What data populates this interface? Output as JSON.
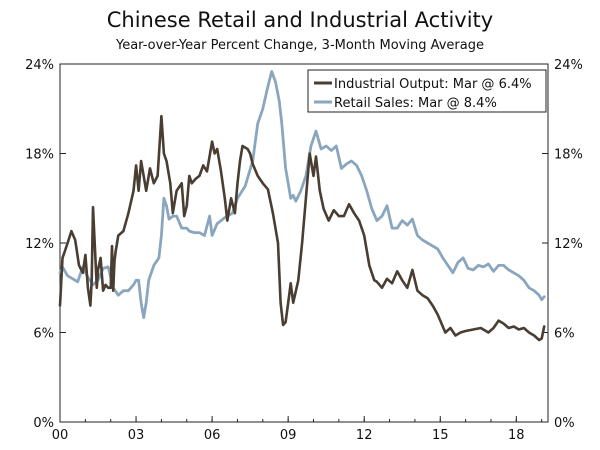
{
  "chart_data": {
    "type": "line",
    "title": "Chinese Retail and Industrial Activity",
    "subtitle": "Year-over-Year Percent Change, 3-Month Moving Average",
    "xlabel": "",
    "ylabel": "",
    "xlim": [
      2000.0,
      2019.25
    ],
    "ylim": [
      0,
      24
    ],
    "grid": false,
    "legend_position": "top-right",
    "x_ticks": [
      {
        "value": 2000,
        "label": "00"
      },
      {
        "value": 2003,
        "label": "03"
      },
      {
        "value": 2006,
        "label": "06"
      },
      {
        "value": 2009,
        "label": "09"
      },
      {
        "value": 2012,
        "label": "12"
      },
      {
        "value": 2015,
        "label": "15"
      },
      {
        "value": 2018,
        "label": "18"
      }
    ],
    "y_ticks": [
      {
        "value": 0,
        "label": "0%"
      },
      {
        "value": 6,
        "label": "6%"
      },
      {
        "value": 12,
        "label": "12%"
      },
      {
        "value": 18,
        "label": "18%"
      },
      {
        "value": 24,
        "label": "24%"
      }
    ],
    "series": [
      {
        "name": "Industrial Output: Mar @ 6.4%",
        "color": "#4a3d31",
        "x": [
          2000.0,
          2000.1,
          2000.2,
          2000.3,
          2000.45,
          2000.6,
          2000.75,
          2000.9,
          2001.0,
          2001.1,
          2001.2,
          2001.25,
          2001.3,
          2001.45,
          2001.5,
          2001.6,
          2001.7,
          2001.8,
          2001.9,
          2002.0,
          2002.05,
          2002.1,
          2002.15,
          2002.2,
          2002.3,
          2002.5,
          2002.7,
          2002.9,
          2003.0,
          2003.1,
          2003.2,
          2003.4,
          2003.55,
          2003.7,
          2003.85,
          2004.0,
          2004.1,
          2004.2,
          2004.35,
          2004.45,
          2004.6,
          2004.8,
          2004.9,
          2005.0,
          2005.1,
          2005.2,
          2005.35,
          2005.5,
          2005.65,
          2005.8,
          2006.0,
          2006.1,
          2006.2,
          2006.35,
          2006.5,
          2006.6,
          2006.75,
          2006.9,
          2007.0,
          2007.1,
          2007.2,
          2007.4,
          2007.5,
          2007.6,
          2007.8,
          2008.0,
          2008.2,
          2008.4,
          2008.6,
          2008.7,
          2008.8,
          2008.9,
          2009.0,
          2009.1,
          2009.2,
          2009.4,
          2009.55,
          2009.7,
          2009.85,
          2010.0,
          2010.1,
          2010.25,
          2010.4,
          2010.6,
          2010.8,
          2011.0,
          2011.2,
          2011.4,
          2011.6,
          2011.8,
          2012.0,
          2012.2,
          2012.4,
          2012.5,
          2012.7,
          2012.9,
          2013.1,
          2013.3,
          2013.5,
          2013.7,
          2013.9,
          2014.1,
          2014.3,
          2014.5,
          2014.7,
          2014.9,
          2015.0,
          2015.2,
          2015.4,
          2015.6,
          2015.8,
          2016.0,
          2016.3,
          2016.6,
          2016.9,
          2017.1,
          2017.3,
          2017.5,
          2017.7,
          2017.9,
          2018.1,
          2018.3,
          2018.5,
          2018.7,
          2018.9,
          2019.0,
          2019.1
        ],
        "values": [
          7.8,
          11.0,
          11.5,
          12.0,
          12.8,
          12.2,
          10.5,
          10.0,
          11.2,
          9.0,
          7.8,
          9.5,
          14.4,
          9.0,
          10.2,
          11.0,
          8.8,
          9.2,
          9.0,
          9.0,
          11.8,
          8.8,
          10.8,
          11.5,
          12.5,
          12.8,
          14.0,
          15.5,
          17.2,
          15.5,
          17.5,
          15.5,
          17.0,
          16.0,
          16.5,
          20.5,
          18.0,
          17.5,
          16.0,
          14.0,
          15.5,
          16.0,
          13.8,
          14.5,
          16.5,
          16.0,
          16.3,
          16.5,
          17.2,
          16.8,
          18.8,
          18.0,
          18.3,
          16.8,
          15.0,
          13.5,
          15.0,
          14.0,
          16.0,
          17.5,
          18.5,
          18.3,
          18.0,
          17.3,
          16.5,
          16.0,
          15.6,
          14.0,
          12.0,
          8.0,
          6.5,
          6.7,
          8.0,
          9.3,
          8.0,
          9.5,
          12.0,
          15.0,
          18.0,
          16.5,
          17.8,
          15.5,
          14.3,
          13.5,
          14.2,
          13.8,
          13.8,
          14.6,
          14.0,
          13.5,
          12.5,
          10.5,
          9.5,
          9.4,
          9.0,
          9.6,
          9.3,
          10.1,
          9.5,
          9.0,
          10.2,
          8.8,
          8.5,
          8.3,
          7.8,
          7.2,
          6.8,
          6.0,
          6.3,
          5.8,
          6.0,
          6.1,
          6.2,
          6.3,
          6.0,
          6.3,
          6.8,
          6.6,
          6.3,
          6.4,
          6.2,
          6.3,
          6.0,
          5.8,
          5.5,
          5.6,
          6.4
        ]
      },
      {
        "name": "Retail Sales: Mar @ 8.4%",
        "color": "#8aa6bf",
        "x": [
          2000.0,
          2000.1,
          2000.3,
          2000.5,
          2000.7,
          2000.9,
          2001.1,
          2001.3,
          2001.5,
          2001.7,
          2001.9,
          2002.1,
          2002.3,
          2002.5,
          2002.7,
          2002.9,
          2003.0,
          2003.1,
          2003.2,
          2003.3,
          2003.4,
          2003.5,
          2003.7,
          2003.9,
          2004.0,
          2004.1,
          2004.2,
          2004.3,
          2004.45,
          2004.6,
          2004.8,
          2005.0,
          2005.1,
          2005.3,
          2005.5,
          2005.7,
          2005.9,
          2006.0,
          2006.2,
          2006.5,
          2006.8,
          2007.0,
          2007.3,
          2007.6,
          2007.8,
          2008.0,
          2008.2,
          2008.35,
          2008.5,
          2008.65,
          2008.75,
          2008.9,
          2009.0,
          2009.1,
          2009.2,
          2009.3,
          2009.5,
          2009.7,
          2009.9,
          2010.1,
          2010.3,
          2010.5,
          2010.7,
          2010.9,
          2011.1,
          2011.3,
          2011.5,
          2011.7,
          2011.9,
          2012.1,
          2012.3,
          2012.5,
          2012.7,
          2012.9,
          2013.1,
          2013.3,
          2013.5,
          2013.7,
          2013.9,
          2014.1,
          2014.3,
          2014.5,
          2014.7,
          2014.9,
          2015.1,
          2015.3,
          2015.5,
          2015.7,
          2015.9,
          2016.1,
          2016.3,
          2016.5,
          2016.7,
          2016.9,
          2017.1,
          2017.3,
          2017.5,
          2017.7,
          2017.9,
          2018.1,
          2018.3,
          2018.5,
          2018.7,
          2018.9,
          2019.0,
          2019.1
        ],
        "values": [
          10.0,
          10.4,
          9.8,
          9.6,
          9.4,
          10.4,
          9.7,
          9.2,
          9.5,
          10.3,
          10.4,
          9.0,
          8.5,
          8.8,
          8.8,
          9.2,
          9.5,
          9.5,
          8.0,
          7.0,
          8.0,
          9.5,
          10.5,
          11.0,
          12.5,
          15.0,
          14.5,
          13.6,
          13.8,
          13.8,
          13.0,
          13.0,
          12.8,
          12.7,
          12.7,
          12.5,
          13.8,
          12.5,
          13.3,
          13.7,
          14.0,
          15.0,
          15.8,
          17.5,
          20.0,
          21.0,
          22.5,
          23.5,
          22.8,
          21.5,
          20.0,
          17.0,
          16.0,
          15.0,
          15.2,
          14.8,
          15.5,
          16.5,
          18.5,
          19.5,
          18.3,
          18.5,
          18.2,
          18.5,
          17.0,
          17.3,
          17.5,
          17.2,
          16.5,
          15.5,
          14.3,
          13.5,
          13.8,
          14.5,
          13.0,
          13.0,
          13.5,
          13.2,
          13.6,
          12.5,
          12.2,
          12.0,
          11.8,
          11.6,
          11.0,
          10.5,
          10.0,
          10.7,
          11.0,
          10.3,
          10.2,
          10.5,
          10.4,
          10.6,
          10.1,
          10.5,
          10.5,
          10.2,
          10.0,
          9.8,
          9.5,
          9.0,
          8.8,
          8.5,
          8.2,
          8.4
        ]
      }
    ]
  }
}
